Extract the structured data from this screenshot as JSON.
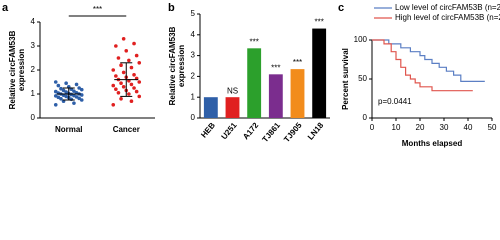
{
  "chart_data": [
    {
      "type": "strip",
      "panel": "a",
      "ylabel": [
        "Relative circFAM53B",
        "expression"
      ],
      "categories": [
        "Normal",
        "Cancer"
      ],
      "colors": [
        "#2e5fa8",
        "#e02020"
      ],
      "values": [
        [
          0.55,
          0.62,
          0.7,
          0.75,
          0.78,
          0.8,
          0.82,
          0.85,
          0.86,
          0.88,
          0.9,
          0.92,
          0.93,
          0.95,
          0.96,
          0.98,
          1.0,
          1.0,
          1.02,
          1.04,
          1.05,
          1.08,
          1.1,
          1.12,
          1.15,
          1.18,
          1.2,
          1.22,
          1.25,
          1.3,
          1.35,
          1.4,
          1.45,
          1.5
        ],
        [
          0.55,
          0.7,
          0.8,
          0.9,
          1.0,
          1.05,
          1.1,
          1.15,
          1.2,
          1.25,
          1.3,
          1.35,
          1.4,
          1.45,
          1.5,
          1.55,
          1.6,
          1.65,
          1.7,
          1.75,
          1.8,
          1.9,
          2.0,
          2.1,
          2.2,
          2.3,
          2.4,
          2.5,
          2.6,
          2.8,
          3.0,
          3.1,
          3.3
        ]
      ],
      "means": [
        1.0,
        1.6
      ],
      "sds": [
        0.25,
        0.7
      ],
      "annotation": "***",
      "ylim": [
        0,
        4
      ],
      "yticks": [
        0,
        1,
        2,
        3,
        4
      ]
    },
    {
      "type": "bar",
      "panel": "b",
      "ylabel": [
        "Relative circFAM53B",
        "expression"
      ],
      "categories": [
        "HEB",
        "U251",
        "A172",
        "TJ861",
        "TJ905",
        "LN18"
      ],
      "values": [
        1.0,
        1.0,
        3.35,
        2.1,
        2.35,
        4.3
      ],
      "colors": [
        "#2e5fa8",
        "#e02020",
        "#2ca02c",
        "#7b2d8e",
        "#f28c1c",
        "#000000"
      ],
      "annotations": [
        null,
        "NS",
        "***",
        "***",
        "***",
        "***"
      ],
      "ylim": [
        0,
        5
      ],
      "yticks": [
        0,
        1,
        2,
        3,
        4,
        5
      ]
    },
    {
      "type": "survival",
      "panel": "c",
      "xlabel": "Months elapsed",
      "ylabel": [
        "Percent survival"
      ],
      "series": [
        {
          "name": "Low level of circFAM53B (n=20)",
          "color": "#5b7fc4",
          "x": [
            0,
            7,
            12,
            16,
            20,
            22,
            25,
            28,
            31,
            34,
            37,
            47
          ],
          "values": [
            100,
            95,
            90,
            85,
            80,
            75,
            70,
            65,
            60,
            55,
            47,
            47
          ]
        },
        {
          "name": "High level of circFAM53B (n=20)",
          "color": "#e0564e",
          "x": [
            0,
            5,
            8,
            10,
            12,
            14,
            16,
            18,
            20,
            25,
            42
          ],
          "values": [
            100,
            95,
            85,
            75,
            65,
            55,
            50,
            45,
            40,
            35,
            35
          ]
        }
      ],
      "annotation": "p=0.0441",
      "xlim": [
        0,
        50
      ],
      "xticks": [
        0,
        10,
        20,
        30,
        40,
        50
      ],
      "ylim": [
        0,
        100
      ],
      "yticks": [
        0,
        50,
        100
      ]
    }
  ]
}
